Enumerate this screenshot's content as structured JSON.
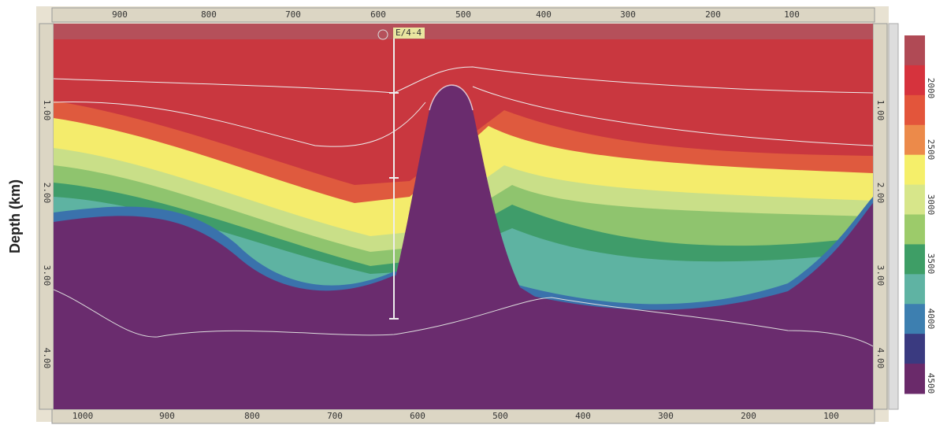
{
  "top_axis": {
    "ticks": [
      "900",
      "800",
      "700",
      "600",
      "500",
      "400",
      "300",
      "200",
      "100"
    ]
  },
  "bottom_axis": {
    "ticks": [
      "1000",
      "900",
      "800",
      "700",
      "600",
      "500",
      "400",
      "300",
      "200",
      "100"
    ]
  },
  "depth_axis": {
    "title": "Depth (km)",
    "ticks": [
      "1.00",
      "2.00",
      "3.00",
      "4.00"
    ]
  },
  "well": {
    "label": "E/4-4"
  },
  "colorbar": {
    "ticks": [
      "2000",
      "2500",
      "3000",
      "3500",
      "4000",
      "4500"
    ]
  }
}
